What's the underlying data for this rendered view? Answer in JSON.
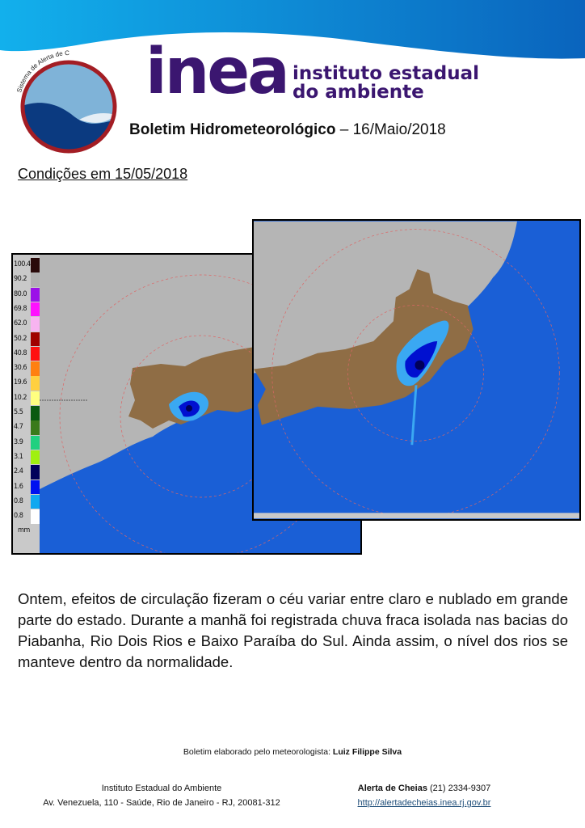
{
  "header": {
    "logo_ring_text": "Sistema de Alerta de Cheias",
    "brand": "inea",
    "brand_sub_line1": "instituto estadual",
    "brand_sub_line2": "do ambiente",
    "bulletin_title": "Boletim Hidrometeorológico",
    "bulletin_date": "– 16/Maio/2018"
  },
  "section_title": "Condições em 15/05/2018",
  "radar_legend": {
    "unit": "mm",
    "items": [
      {
        "value": "100.4",
        "color": "#2a0a0a"
      },
      {
        "value": "90.2",
        "color": "#b0b0b0"
      },
      {
        "value": "80.0",
        "color": "#9b10e8"
      },
      {
        "value": "69.8",
        "color": "#ff10ff"
      },
      {
        "value": "62.0",
        "color": "#f7b4f0"
      },
      {
        "value": "50.2",
        "color": "#a00000"
      },
      {
        "value": "40.8",
        "color": "#ff1010"
      },
      {
        "value": "30.6",
        "color": "#ff8010"
      },
      {
        "value": "19.6",
        "color": "#ffd040"
      },
      {
        "value": "10.2",
        "color": "#ffff80"
      },
      {
        "value": "5.5",
        "color": "#0a5a10"
      },
      {
        "value": "4.7",
        "color": "#3a7a1a"
      },
      {
        "value": "3.9",
        "color": "#20d080"
      },
      {
        "value": "3.1",
        "color": "#a0f010"
      },
      {
        "value": "2.4",
        "color": "#00005a"
      },
      {
        "value": "1.6",
        "color": "#0010f0"
      },
      {
        "value": "0.8",
        "color": "#10a8f0"
      },
      {
        "value": "0.8",
        "color": "#ffffff"
      }
    ]
  },
  "colors": {
    "ocean": "#1a5fd6",
    "land": "#b5b5b5",
    "state": "#8f6d45",
    "brand": "#3b1670"
  },
  "body_text": "Ontem, efeitos de circulação fizeram o céu variar entre claro e nublado em grande parte do estado. Durante a manhã foi registrada chuva fraca isolada nas bacias do Piabanha, Rio Dois Rios e Baixo Paraíba do Sul. Ainda assim, o nível dos rios se manteve dentro da normalidade.",
  "footer": {
    "credit_prefix": "Boletim elaborado pelo meteorologista: ",
    "credit_name": "Luiz Filippe Silva",
    "org_name": "Instituto Estadual do Ambiente",
    "org_address": "Av. Venezuela, 110 - Saúde, Rio de Janeiro - RJ, 20081-312",
    "alert_label": "Alerta de Cheias",
    "alert_phone": " (21) 2334-9307",
    "alert_url": "http://alertadecheias.inea.rj.gov.br"
  }
}
